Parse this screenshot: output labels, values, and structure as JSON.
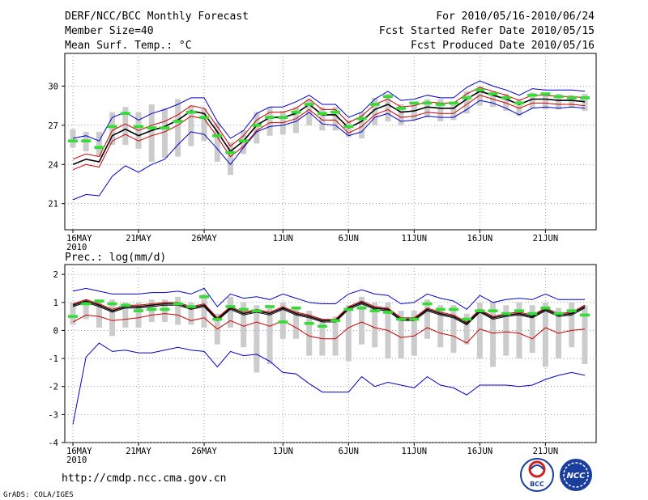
{
  "header": {
    "title": "DERF/NCC/BCC Monthly Forecast",
    "member_size": "Member Size=40",
    "variable": "Mean Surf. Temp.: °C",
    "period": "For 2010/05/16-2010/06/24",
    "refer_date": "Fcst Started Refer Date 2010/05/15",
    "produced_date": "Fcst Produced Date 2010/05/16"
  },
  "footer": {
    "url": "http://cmdp.ncc.cma.gov.cn",
    "credit": "GrADS: COLA/IGES",
    "logo_left_text": "BCC",
    "logo_right_text": "NCC"
  },
  "colors": {
    "ensemble_mean": "#000000",
    "inner_bound": "#cc0000",
    "outer_bound": "#0000cc",
    "observed_marker": "#33dd33",
    "spread_bar": "#cccccc",
    "grid": "#888888"
  },
  "chart_data": [
    {
      "type": "line",
      "title": "Mean Surf. Temp.: °C",
      "ylim": [
        19,
        32.5
      ],
      "yticks": [
        21,
        24,
        27,
        30
      ],
      "xlim": [
        0,
        39
      ],
      "x_ticks": [
        {
          "day": 0,
          "label": "16MAY",
          "sub": "2010"
        },
        {
          "day": 5,
          "label": "21MAY"
        },
        {
          "day": 10,
          "label": "26MAY"
        },
        {
          "day": 16,
          "label": "1JUN"
        },
        {
          "day": 21,
          "label": "6JUN"
        },
        {
          "day": 26,
          "label": "11JUN"
        },
        {
          "day": 31,
          "label": "16JUN"
        },
        {
          "day": 36,
          "label": "21JUN"
        }
      ],
      "series": [
        {
          "name": "ensemble mean",
          "values": [
            24.0,
            24.4,
            24.2,
            26.2,
            26.7,
            26.2,
            26.6,
            26.9,
            27.4,
            28.1,
            27.9,
            26.5,
            25.0,
            25.8,
            27.0,
            27.6,
            27.6,
            27.9,
            28.6,
            27.8,
            27.8,
            26.8,
            27.3,
            28.2,
            28.6,
            28.0,
            28.1,
            28.4,
            28.3,
            28.3,
            29.0,
            29.6,
            29.3,
            29.0,
            28.6,
            29.0,
            29.0,
            28.9,
            28.9,
            28.8
          ]
        },
        {
          "name": "upper inner",
          "values": [
            24.4,
            24.8,
            24.6,
            26.6,
            27.1,
            26.6,
            27.0,
            27.3,
            27.8,
            28.5,
            28.3,
            26.9,
            25.4,
            26.2,
            27.4,
            28.0,
            28.0,
            28.3,
            29.0,
            28.2,
            28.2,
            27.2,
            27.7,
            28.6,
            29.0,
            28.4,
            28.5,
            28.8,
            28.7,
            28.7,
            29.4,
            29.9,
            29.6,
            29.3,
            28.9,
            29.3,
            29.3,
            29.2,
            29.2,
            29.1
          ]
        },
        {
          "name": "lower inner",
          "values": [
            23.6,
            24.0,
            23.8,
            25.8,
            26.3,
            25.8,
            26.2,
            26.5,
            27.0,
            27.7,
            27.5,
            26.1,
            24.6,
            25.4,
            26.6,
            27.2,
            27.2,
            27.5,
            28.2,
            27.4,
            27.4,
            26.4,
            26.9,
            27.8,
            28.2,
            27.6,
            27.7,
            28.0,
            27.9,
            27.9,
            28.6,
            29.3,
            29.0,
            28.7,
            28.3,
            28.7,
            28.7,
            28.6,
            28.6,
            28.5
          ]
        },
        {
          "name": "upper outer",
          "values": [
            26.0,
            26.2,
            25.8,
            27.6,
            28.0,
            27.4,
            27.9,
            28.2,
            28.6,
            29.1,
            29.1,
            27.3,
            26.0,
            26.6,
            27.9,
            28.4,
            28.4,
            28.8,
            29.3,
            28.6,
            28.6,
            27.6,
            28.0,
            29.0,
            29.6,
            28.9,
            29.0,
            29.3,
            29.1,
            29.1,
            29.9,
            30.4,
            30.0,
            29.7,
            29.3,
            29.8,
            29.7,
            29.7,
            29.7,
            29.6
          ]
        },
        {
          "name": "lower outer",
          "values": [
            21.3,
            21.7,
            21.6,
            23.1,
            23.9,
            23.4,
            24.0,
            24.4,
            25.5,
            26.5,
            26.3,
            25.2,
            24.0,
            25.3,
            26.5,
            26.9,
            27.0,
            27.3,
            28.0,
            27.1,
            27.0,
            26.2,
            26.5,
            27.6,
            27.9,
            27.3,
            27.4,
            27.7,
            27.6,
            27.6,
            28.2,
            28.9,
            28.7,
            28.3,
            27.8,
            28.3,
            28.4,
            28.3,
            28.4,
            28.3
          ]
        }
      ],
      "observed": [
        25.8,
        25.8,
        25.3,
        26.9,
        27.9,
        26.9,
        26.8,
        26.8,
        27.3,
        28.0,
        27.6,
        26.2,
        24.9,
        25.8,
        27.0,
        27.6,
        27.6,
        28.0,
        28.6,
        27.9,
        28.0,
        26.9,
        27.5,
        28.6,
        29.2,
        28.3,
        28.7,
        28.7,
        28.6,
        28.7,
        29.1,
        29.7,
        29.4,
        29.1,
        28.7,
        29.3,
        29.4,
        29.2,
        29.1,
        29.1
      ],
      "spread": [
        [
          25.3,
          26.7
        ],
        [
          25.0,
          26.5
        ],
        [
          24.6,
          26.5
        ],
        [
          25.5,
          28.0
        ],
        [
          25.5,
          28.4
        ],
        [
          25.2,
          28.0
        ],
        [
          24.2,
          28.6
        ],
        [
          24.5,
          28.3
        ],
        [
          24.6,
          29.0
        ],
        [
          25.4,
          28.5
        ],
        [
          25.8,
          28.3
        ],
        [
          24.2,
          27.2
        ],
        [
          23.2,
          25.7
        ],
        [
          24.8,
          26.6
        ],
        [
          25.6,
          28.0
        ],
        [
          26.2,
          28.4
        ],
        [
          26.3,
          28.1
        ],
        [
          26.4,
          28.4
        ],
        [
          27.0,
          29.0
        ],
        [
          26.6,
          28.4
        ],
        [
          26.6,
          28.4
        ],
        [
          26.1,
          27.4
        ],
        [
          26.0,
          28.0
        ],
        [
          27.0,
          29.1
        ],
        [
          27.3,
          29.4
        ],
        [
          27.0,
          28.6
        ],
        [
          27.4,
          28.8
        ],
        [
          27.6,
          29.0
        ],
        [
          27.3,
          29.0
        ],
        [
          27.4,
          28.8
        ],
        [
          27.9,
          29.6
        ],
        [
          28.5,
          30.0
        ],
        [
          28.4,
          29.6
        ],
        [
          28.1,
          29.4
        ],
        [
          27.7,
          29.0
        ],
        [
          28.3,
          29.5
        ],
        [
          28.2,
          29.5
        ],
        [
          28.2,
          29.4
        ],
        [
          28.4,
          29.3
        ],
        [
          28.1,
          29.4
        ]
      ]
    },
    {
      "type": "line",
      "title": "Prec.: log(mm/d)",
      "ylim": [
        -4,
        2.35
      ],
      "yticks": [
        -4,
        -3,
        -2,
        -1,
        0,
        1,
        2
      ],
      "xlim": [
        0,
        39
      ],
      "x_ticks": [
        {
          "day": 0,
          "label": "16MAY",
          "sub": "2010"
        },
        {
          "day": 5,
          "label": "21MAY"
        },
        {
          "day": 10,
          "label": "26MAY"
        },
        {
          "day": 16,
          "label": "1JUN"
        },
        {
          "day": 21,
          "label": "6JUN"
        },
        {
          "day": 26,
          "label": "11JUN"
        },
        {
          "day": 31,
          "label": "16JUN"
        },
        {
          "day": 36,
          "label": "21JUN"
        }
      ],
      "series": [
        {
          "name": "ensemble mean",
          "values": [
            0.9,
            1.05,
            0.9,
            0.7,
            0.85,
            0.85,
            0.9,
            0.95,
            0.95,
            0.8,
            0.9,
            0.4,
            0.8,
            0.6,
            0.7,
            0.6,
            0.8,
            0.6,
            0.5,
            0.35,
            0.35,
            0.8,
            1.0,
            0.8,
            0.75,
            0.4,
            0.4,
            0.75,
            0.6,
            0.5,
            0.25,
            0.7,
            0.45,
            0.55,
            0.6,
            0.5,
            0.75,
            0.55,
            0.6,
            0.85
          ]
        },
        {
          "name": "upper inner",
          "values": [
            0.95,
            1.1,
            0.95,
            0.75,
            0.9,
            0.9,
            0.95,
            1.0,
            1.0,
            0.85,
            0.95,
            0.45,
            0.85,
            0.65,
            0.75,
            0.65,
            0.85,
            0.65,
            0.55,
            0.4,
            0.4,
            0.85,
            1.05,
            0.85,
            0.8,
            0.45,
            0.45,
            0.8,
            0.65,
            0.55,
            0.3,
            0.75,
            0.5,
            0.6,
            0.65,
            0.55,
            0.8,
            0.6,
            0.65,
            0.9
          ]
        },
        {
          "name": "lower inner",
          "values": [
            0.3,
            0.55,
            0.5,
            0.35,
            0.4,
            0.45,
            0.55,
            0.6,
            0.55,
            0.35,
            0.45,
            0.05,
            0.35,
            0.15,
            0.3,
            0.15,
            0.35,
            0.1,
            -0.2,
            -0.3,
            -0.3,
            0.1,
            0.3,
            0.1,
            0.0,
            -0.25,
            -0.2,
            0.1,
            -0.1,
            -0.2,
            -0.45,
            0.05,
            -0.1,
            -0.05,
            -0.1,
            -0.3,
            0.1,
            -0.1,
            0.0,
            0.05
          ]
        },
        {
          "name": "upper outer",
          "values": [
            1.4,
            1.5,
            1.4,
            1.3,
            1.3,
            1.3,
            1.35,
            1.35,
            1.4,
            1.3,
            1.5,
            0.85,
            1.3,
            1.15,
            1.2,
            1.1,
            1.3,
            1.15,
            1.0,
            0.95,
            0.95,
            1.3,
            1.45,
            1.3,
            1.25,
            0.95,
            1.0,
            1.3,
            1.15,
            1.05,
            0.75,
            1.25,
            1.0,
            1.1,
            1.15,
            1.1,
            1.3,
            1.1,
            1.1,
            1.1
          ]
        },
        {
          "name": "lower outer",
          "values": [
            -3.35,
            -0.95,
            -0.45,
            -0.75,
            -0.7,
            -0.8,
            -0.8,
            -0.7,
            -0.6,
            -0.7,
            -0.75,
            -1.3,
            -0.75,
            -0.9,
            -0.85,
            -1.1,
            -1.5,
            -1.55,
            -1.9,
            -2.2,
            -2.2,
            -2.2,
            -1.65,
            -2.0,
            -1.85,
            -1.95,
            -2.05,
            -1.65,
            -1.95,
            -2.05,
            -2.3,
            -1.95,
            -1.95,
            -1.95,
            -2.0,
            -1.95,
            -1.75,
            -1.6,
            -1.5,
            -1.6
          ]
        },
        {
          "name": "alt mean",
          "values": [
            0.85,
            1.0,
            0.85,
            0.65,
            0.8,
            0.8,
            0.85,
            0.9,
            0.9,
            0.75,
            0.85,
            0.35,
            0.75,
            0.55,
            0.65,
            0.55,
            0.75,
            0.55,
            0.45,
            0.3,
            0.3,
            0.75,
            0.95,
            0.75,
            0.7,
            0.35,
            0.35,
            0.7,
            0.55,
            0.45,
            0.2,
            0.65,
            0.4,
            0.5,
            0.55,
            0.45,
            0.7,
            0.5,
            0.55,
            0.8
          ]
        }
      ],
      "observed": [
        0.5,
        0.95,
        1.05,
        0.95,
        0.9,
        0.7,
        0.75,
        0.75,
        0.95,
        0.85,
        1.2,
        0.4,
        0.85,
        0.75,
        0.7,
        0.85,
        0.3,
        0.8,
        0.25,
        0.15,
        0.35,
        0.75,
        0.8,
        0.7,
        0.65,
        0.4,
        0.4,
        0.95,
        0.75,
        0.75,
        0.4,
        0.7,
        0.7,
        0.6,
        0.7,
        0.6,
        0.8,
        0.6,
        0.7,
        0.55
      ],
      "spread": [
        [
          0.2,
          1.0
        ],
        [
          0.4,
          1.1
        ],
        [
          0.1,
          1.05
        ],
        [
          -0.2,
          1.1
        ],
        [
          0.1,
          1.0
        ],
        [
          0.1,
          1.0
        ],
        [
          0.3,
          1.1
        ],
        [
          0.3,
          1.1
        ],
        [
          0.2,
          1.2
        ],
        [
          0.2,
          1.0
        ],
        [
          0.1,
          1.3
        ],
        [
          -0.5,
          0.6
        ],
        [
          0.1,
          1.2
        ],
        [
          -0.6,
          1.0
        ],
        [
          -1.5,
          0.9
        ],
        [
          -1.2,
          0.8
        ],
        [
          -0.3,
          1.0
        ],
        [
          -0.3,
          0.8
        ],
        [
          -0.9,
          0.7
        ],
        [
          -0.9,
          0.4
        ],
        [
          -0.9,
          0.5
        ],
        [
          -1.1,
          0.9
        ],
        [
          -0.5,
          1.2
        ],
        [
          -0.6,
          1.0
        ],
        [
          -1.0,
          1.0
        ],
        [
          -1.0,
          0.7
        ],
        [
          -0.9,
          0.7
        ],
        [
          -0.3,
          1.1
        ],
        [
          -0.6,
          0.9
        ],
        [
          -0.8,
          0.9
        ],
        [
          -0.5,
          0.6
        ],
        [
          -1.0,
          1.0
        ],
        [
          -1.3,
          1.0
        ],
        [
          -0.9,
          0.9
        ],
        [
          -1.0,
          1.0
        ],
        [
          -0.8,
          0.9
        ],
        [
          -1.3,
          1.0
        ],
        [
          -1.0,
          0.8
        ],
        [
          -0.6,
          1.0
        ],
        [
          -1.2,
          0.9
        ]
      ]
    }
  ]
}
